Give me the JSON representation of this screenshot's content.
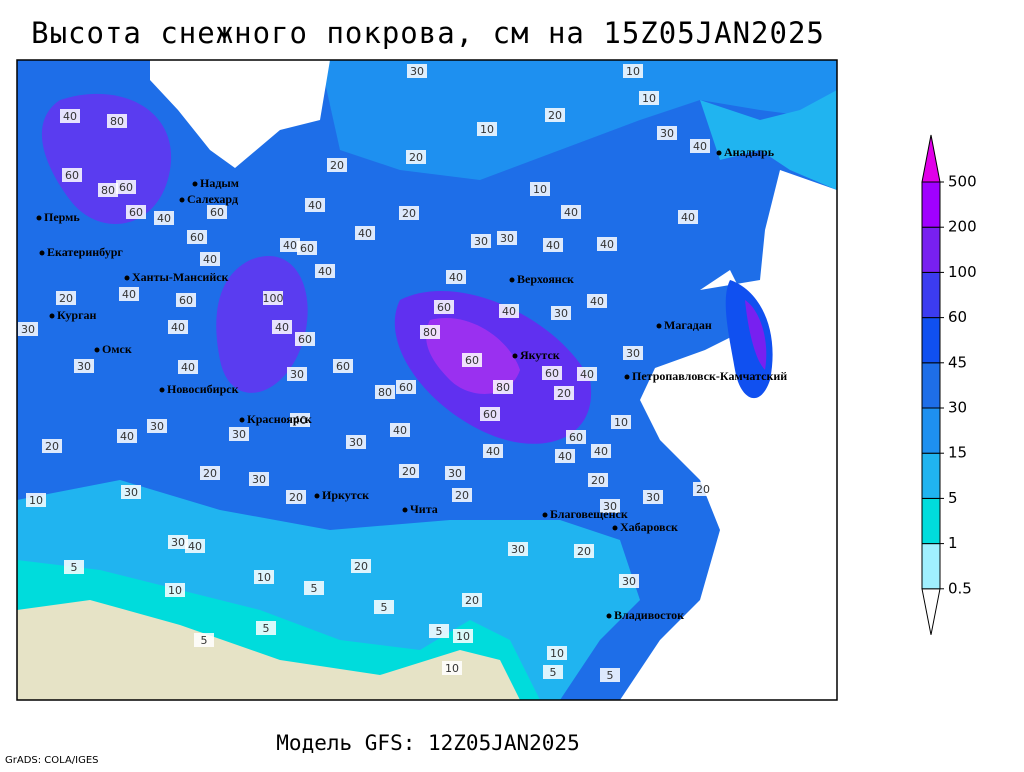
{
  "title": "Высота снежного покрова, см на 15Z05JAN2025",
  "footer": "Модель GFS: 12Z05JAN2025",
  "credit": "GrADS: COLA/IGES",
  "cities": [
    "Пермь",
    "Екатеринбург",
    "Ханты-Мансийск",
    "Курган",
    "Омск",
    "Новосибирск",
    "Красноярск",
    "Иркутск",
    "Чита",
    "Верхоянск",
    "Якутск",
    "Магадан",
    "Петропавловск-Камчатский",
    "Анадырь",
    "Благовещенск",
    "Хабаровск",
    "Владивосток",
    "Надым",
    "Салехард"
  ],
  "legend": {
    "levels": [
      0.5,
      1,
      5,
      15,
      30,
      45,
      60,
      100,
      200,
      500
    ],
    "colors": [
      "#ffffff",
      "#a0f0ff",
      "#00dcdc",
      "#20b4f0",
      "#1e90f0",
      "#1e6ee8",
      "#1050f0",
      "#3c3cf0",
      "#7820f0",
      "#a000ff",
      "#e000e8"
    ]
  },
  "contour_labels": [
    30,
    10,
    10,
    80,
    40,
    20,
    10,
    30,
    40,
    20,
    20,
    60,
    80,
    60,
    10,
    40,
    20,
    60,
    40,
    60,
    40,
    40,
    60,
    40,
    60,
    40,
    30,
    30,
    40,
    40,
    40,
    40,
    40,
    40,
    40,
    30,
    60,
    100,
    40,
    20,
    30,
    40,
    40,
    80,
    60,
    60,
    60,
    60,
    80,
    60,
    40,
    30,
    40,
    30,
    30,
    80,
    60,
    60,
    20,
    10,
    30,
    40,
    20,
    30,
    40,
    30,
    40,
    60,
    40,
    40,
    40,
    20,
    30,
    20,
    30,
    20,
    10,
    30,
    20,
    20,
    30,
    20,
    30,
    40,
    30,
    30,
    20,
    5,
    10,
    20,
    30,
    10,
    5,
    5,
    20,
    5,
    5,
    5,
    10,
    10,
    10,
    5,
    5
  ]
}
